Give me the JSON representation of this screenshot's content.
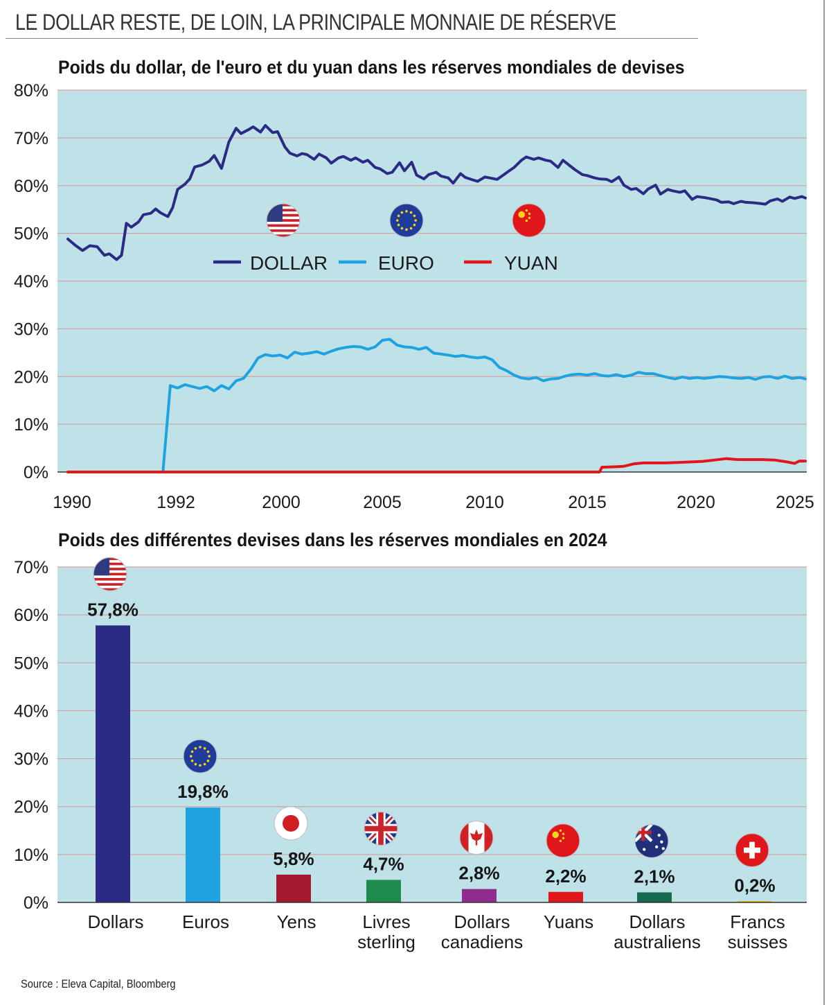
{
  "headline": "LE DOLLAR RESTE, DE LOIN, LA PRINCIPALE MONNAIE DE RÉSERVE",
  "source": "Source : Eleva Capital, Bloomberg",
  "colors": {
    "panel_bg": "#bfe2e8",
    "grid": "#d4a4a4",
    "dollar": "#2b2a85",
    "euro": "#1ea3e0",
    "yuan": "#e0161b"
  },
  "chart_data": [
    {
      "type": "line",
      "title": "Poids du dollar, de l'euro et du yuan dans les réserves mondiales de devises",
      "x_tick_labels": [
        "1990",
        "1992",
        "2000",
        "2005",
        "2010",
        "2015",
        "2020",
        "2025"
      ],
      "y_tick_labels": [
        "0%",
        "10%",
        "20%",
        "30%",
        "40%",
        "50%",
        "60%",
        "70%",
        "80%"
      ],
      "ylim": [
        0,
        80
      ],
      "x_range": [
        1995,
        2025.3
      ],
      "grid": true,
      "legend_position": "center",
      "series": [
        {
          "name": "DOLLAR",
          "color": "#2b2a85",
          "icon": "us-flag-icon",
          "x": [
            1995.0,
            1995.3,
            1995.6,
            1995.9,
            1996.2,
            1996.5,
            1996.7,
            1997.0,
            1997.2,
            1997.4,
            1997.6,
            1997.9,
            1998.1,
            1998.4,
            1998.6,
            1998.8,
            1999.1,
            1999.3,
            1999.5,
            1999.8,
            2000.0,
            2000.2,
            2000.5,
            2000.8,
            2001.0,
            2001.3,
            2001.6,
            2001.9,
            2002.1,
            2002.4,
            2002.6,
            2002.9,
            2003.1,
            2003.4,
            2003.6,
            2003.9,
            2004.1,
            2004.4,
            2004.6,
            2004.8,
            2005.1,
            2005.3,
            2005.6,
            2005.8,
            2006.1,
            2006.3,
            2006.6,
            2006.8,
            2007.1,
            2007.3,
            2007.6,
            2007.8,
            2008.1,
            2008.3,
            2008.6,
            2008.8,
            2009.1,
            2009.3,
            2009.6,
            2009.8,
            2010.1,
            2010.3,
            2010.6,
            2010.8,
            2011.1,
            2011.3,
            2011.6,
            2011.8,
            2012.1,
            2012.3,
            2012.6,
            2012.8,
            2013.1,
            2013.3,
            2013.6,
            2013.8,
            2014.1,
            2014.3,
            2014.6,
            2014.8,
            2015.1,
            2015.3,
            2015.6,
            2015.8,
            2016.1,
            2016.3,
            2016.6,
            2016.8,
            2017.1,
            2017.3,
            2017.6,
            2017.8,
            2018.1,
            2018.3,
            2018.6,
            2018.8,
            2019.1,
            2019.3,
            2019.6,
            2019.8,
            2020.1,
            2020.3,
            2020.6,
            2020.8,
            2021.1,
            2021.3,
            2021.6,
            2021.8,
            2022.1,
            2022.3,
            2022.6,
            2022.8,
            2023.1,
            2023.3,
            2023.6,
            2023.8,
            2024.1,
            2024.3,
            2024.6,
            2024.8,
            2025.1,
            2025.3
          ],
          "values": [
            48.8,
            47.5,
            46.4,
            47.4,
            47.2,
            45.4,
            45.7,
            44.5,
            45.4,
            52.1,
            51.3,
            52.4,
            53.9,
            54.2,
            55.1,
            54.3,
            53.5,
            55.4,
            59.2,
            60.3,
            61.4,
            63.9,
            64.3,
            65.1,
            66.3,
            63.6,
            69.1,
            72.0,
            70.9,
            71.7,
            72.3,
            71.2,
            72.6,
            71.1,
            71.3,
            68.1,
            66.8,
            66.2,
            66.7,
            66.5,
            65.5,
            66.6,
            65.8,
            64.7,
            65.8,
            66.1,
            65.3,
            65.8,
            64.9,
            65.3,
            63.8,
            63.5,
            62.5,
            62.8,
            64.8,
            63.1,
            64.9,
            62.2,
            61.4,
            62.3,
            62.8,
            62.0,
            61.6,
            60.5,
            62.5,
            61.7,
            61.2,
            60.9,
            61.8,
            61.6,
            61.3,
            62.0,
            63.1,
            63.8,
            65.3,
            66.0,
            65.5,
            65.8,
            65.3,
            65.1,
            63.8,
            65.3,
            64.1,
            63.3,
            62.3,
            62.1,
            61.6,
            61.4,
            61.3,
            60.8,
            61.8,
            60.1,
            59.2,
            59.4,
            58.3,
            59.3,
            60.1,
            58.2,
            59.2,
            58.9,
            58.6,
            58.9,
            57.1,
            57.7,
            57.5,
            57.3,
            57.0,
            56.5,
            56.6,
            56.2,
            56.7,
            56.5,
            56.4,
            56.3,
            56.1,
            56.8,
            57.2,
            56.7,
            57.6,
            57.3,
            57.7,
            57.4
          ]
        },
        {
          "name": "EURO",
          "color": "#1ea3e0",
          "icon": "eu-flag-icon",
          "x": [
            1998.9,
            1999.2,
            1999.5,
            1999.8,
            2000.1,
            2000.4,
            2000.7,
            2001.0,
            2001.3,
            2001.6,
            2001.9,
            2002.2,
            2002.5,
            2002.8,
            2003.1,
            2003.4,
            2003.7,
            2004.0,
            2004.3,
            2004.6,
            2004.9,
            2005.2,
            2005.5,
            2005.8,
            2006.1,
            2006.4,
            2006.7,
            2007.0,
            2007.3,
            2007.6,
            2007.9,
            2008.2,
            2008.5,
            2008.8,
            2009.1,
            2009.4,
            2009.7,
            2010.0,
            2010.3,
            2010.6,
            2010.9,
            2011.2,
            2011.5,
            2011.8,
            2012.1,
            2012.4,
            2012.7,
            2013.0,
            2013.3,
            2013.6,
            2013.9,
            2014.2,
            2014.5,
            2014.8,
            2015.1,
            2015.4,
            2015.7,
            2016.0,
            2016.3,
            2016.6,
            2016.9,
            2017.2,
            2017.5,
            2017.8,
            2018.1,
            2018.4,
            2018.7,
            2019.0,
            2019.3,
            2019.6,
            2019.9,
            2020.2,
            2020.5,
            2020.8,
            2021.1,
            2021.4,
            2021.7,
            2022.0,
            2022.3,
            2022.6,
            2022.9,
            2023.2,
            2023.5,
            2023.8,
            2024.1,
            2024.4,
            2024.7,
            2025.0,
            2025.3
          ],
          "values": [
            0,
            18.1,
            17.6,
            18.3,
            17.9,
            17.5,
            17.9,
            17.0,
            18.1,
            17.4,
            19.1,
            19.6,
            21.5,
            23.9,
            24.6,
            24.3,
            24.5,
            23.9,
            25.1,
            24.7,
            24.9,
            25.2,
            24.7,
            25.3,
            25.8,
            26.1,
            26.3,
            26.2,
            25.7,
            26.2,
            27.6,
            27.8,
            26.6,
            26.2,
            26.1,
            25.7,
            26.1,
            24.9,
            24.7,
            24.5,
            24.2,
            24.4,
            24.1,
            23.9,
            24.1,
            23.5,
            21.9,
            21.2,
            20.3,
            19.7,
            19.5,
            19.8,
            19.1,
            19.5,
            19.6,
            20.1,
            20.4,
            20.5,
            20.3,
            20.6,
            20.2,
            20.1,
            20.4,
            20.0,
            20.3,
            20.9,
            20.6,
            20.6,
            20.2,
            19.8,
            19.5,
            19.9,
            19.6,
            19.8,
            19.6,
            19.8,
            20.0,
            19.9,
            19.7,
            19.6,
            19.8,
            19.4,
            19.9,
            20.0,
            19.6,
            20.1,
            19.6,
            19.8,
            19.5
          ]
        },
        {
          "name": "YUAN",
          "color": "#e0161b",
          "icon": "china-flag-icon",
          "x": [
            1995.0,
            2016.8,
            2016.9,
            2017.5,
            2017.8,
            2018.2,
            2018.6,
            2019.0,
            2019.5,
            2020.0,
            2020.5,
            2021.0,
            2021.5,
            2022.0,
            2022.5,
            2023.0,
            2023.5,
            2024.0,
            2024.5,
            2024.8,
            2025.0,
            2025.3
          ],
          "values": [
            0,
            0,
            1.0,
            1.1,
            1.2,
            1.7,
            1.9,
            1.9,
            1.9,
            2.0,
            2.1,
            2.2,
            2.5,
            2.8,
            2.6,
            2.6,
            2.6,
            2.5,
            2.1,
            1.8,
            2.3,
            2.3
          ]
        }
      ]
    },
    {
      "type": "bar",
      "title": "Poids des différentes devises dans les réserves mondiales en 2024",
      "y_tick_labels": [
        "0%",
        "10%",
        "20%",
        "30%",
        "40%",
        "50%",
        "60%",
        "70%"
      ],
      "ylim": [
        0,
        70
      ],
      "grid": true,
      "categories": [
        {
          "label": "Dollars",
          "label2": "",
          "value": 57.8,
          "value_label": "57,8%",
          "color": "#2b2a85",
          "icon": "us-flag-icon"
        },
        {
          "label": "Euros",
          "label2": "",
          "value": 19.8,
          "value_label": "19,8%",
          "color": "#1ea3e0",
          "icon": "eu-flag-icon"
        },
        {
          "label": "Yens",
          "label2": "",
          "value": 5.8,
          "value_label": "5,8%",
          "color": "#a3182e",
          "icon": "japan-flag-icon"
        },
        {
          "label": "Livres",
          "label2": "sterling",
          "value": 4.7,
          "value_label": "4,7%",
          "color": "#1e8a4c",
          "icon": "uk-flag-icon"
        },
        {
          "label": "Dollars",
          "label2": "canadiens",
          "value": 2.8,
          "value_label": "2,8%",
          "color": "#922b8e",
          "icon": "canada-flag-icon"
        },
        {
          "label": "Yuans",
          "label2": "",
          "value": 2.2,
          "value_label": "2,2%",
          "color": "#e0161b",
          "icon": "china-flag-icon"
        },
        {
          "label": "Dollars",
          "label2": "australiens",
          "value": 2.1,
          "value_label": "2,1%",
          "color": "#146b4d",
          "icon": "australia-flag-icon"
        },
        {
          "label": "Francs",
          "label2": "suisses",
          "value": 0.2,
          "value_label": "0,2%",
          "color": "#e8c11c",
          "icon": "switzerland-flag-icon"
        }
      ]
    }
  ]
}
